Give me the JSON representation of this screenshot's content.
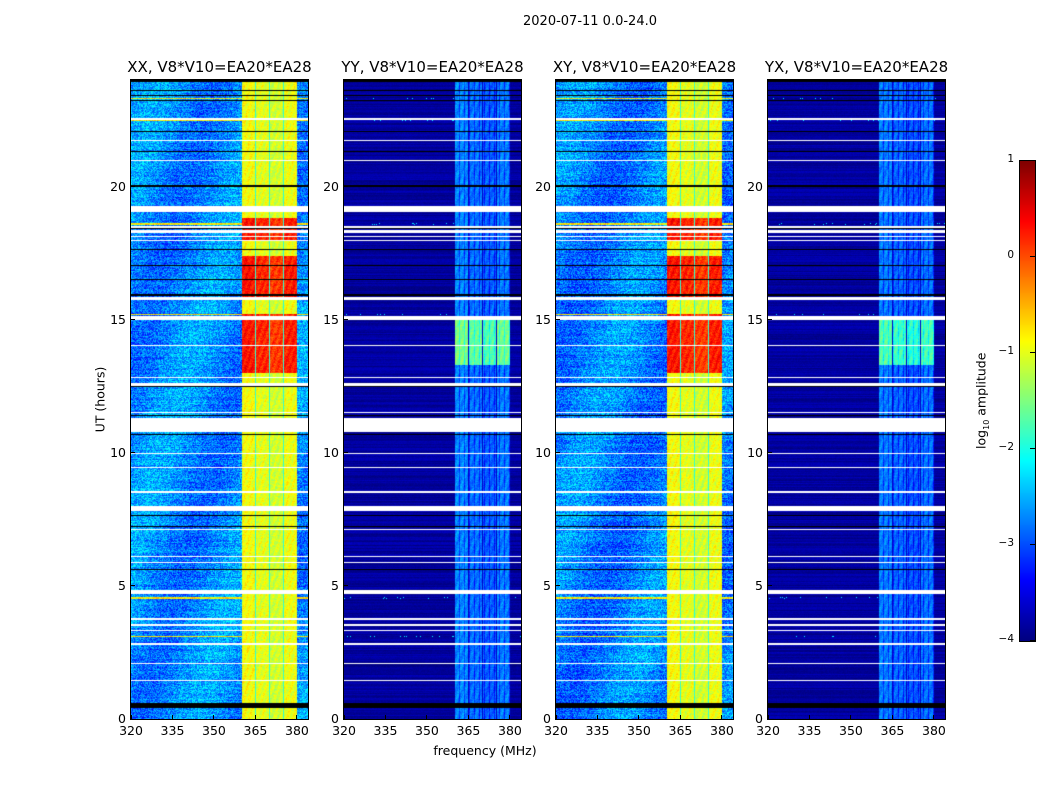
{
  "chart_data": {
    "type": "heatmap",
    "title": "2020-07-11 0.0-24.0",
    "xlabel": "frequency (MHz)",
    "ylabel": "UT (hours)",
    "xlim": [
      320,
      384
    ],
    "ylim": [
      0,
      24
    ],
    "xticks": [
      "320",
      "335",
      "350",
      "365",
      "380"
    ],
    "xtick_values": [
      320,
      335,
      350,
      365,
      380
    ],
    "yticks": [
      "0",
      "5",
      "10",
      "15",
      "20"
    ],
    "ytick_values": [
      0,
      5,
      10,
      15,
      20
    ],
    "colormap": "jet",
    "colorbar": {
      "label_main": "log",
      "label_sub": "10",
      "label_rest": " amplitude",
      "range": [
        -4,
        1
      ],
      "ticks": [
        "−4",
        "−3",
        "−2",
        "−1",
        "0",
        "1"
      ],
      "tick_values": [
        -4,
        -3,
        -2,
        -1,
        0,
        1
      ]
    },
    "subbands_mhz": [
      [
        360.3,
        364.8
      ],
      [
        365.3,
        369.8
      ],
      [
        370.3,
        374.9
      ],
      [
        375.4,
        379.9
      ]
    ],
    "panels": [
      {
        "title": "XX, V8*V10=EA20*EA28",
        "background_log_amp": -2.7,
        "band_log_amp": -1.0,
        "peak_log_amp": 0.2,
        "peak_hours": [
          [
            13.0,
            15.2
          ],
          [
            15.8,
            17.4
          ],
          [
            18.0,
            18.8
          ]
        ]
      },
      {
        "title": "YY, V8*V10=EA20*EA28",
        "background_log_amp": -3.85,
        "band_log_amp": -2.8,
        "peak_log_amp": -1.6,
        "peak_hours": [
          [
            13.3,
            15.0
          ]
        ]
      },
      {
        "title": "XY, V8*V10=EA20*EA28",
        "background_log_amp": -2.75,
        "band_log_amp": -1.0,
        "peak_log_amp": 0.2,
        "peak_hours": [
          [
            13.0,
            15.2
          ],
          [
            15.8,
            17.4
          ],
          [
            18.0,
            18.8
          ]
        ]
      },
      {
        "title": "YX, V8*V10=EA20*EA28",
        "background_log_amp": -3.85,
        "band_log_amp": -2.85,
        "peak_log_amp": -1.8,
        "peak_hours": [
          [
            13.3,
            15.0
          ]
        ]
      }
    ],
    "flagged_hours_white": [
      [
        19.05,
        19.28
      ],
      [
        10.78,
        11.3
      ],
      [
        7.8,
        8.0
      ],
      [
        4.7,
        4.86
      ],
      [
        2.78,
        2.84
      ],
      [
        2.05,
        2.1
      ],
      [
        1.42,
        1.48
      ],
      [
        3.72,
        3.78
      ],
      [
        3.5,
        3.55
      ],
      [
        3.3,
        3.35
      ],
      [
        9.42,
        9.48
      ],
      [
        14.0,
        14.06
      ],
      [
        12.8,
        12.86
      ],
      [
        12.52,
        12.62
      ],
      [
        11.48,
        11.54
      ],
      [
        15.0,
        15.12
      ],
      [
        15.72,
        15.84
      ],
      [
        17.95,
        18.0
      ],
      [
        18.1,
        18.15
      ],
      [
        18.25,
        18.35
      ],
      [
        18.45,
        18.5
      ],
      [
        22.5,
        22.56
      ],
      [
        21.7,
        21.76
      ],
      [
        20.95,
        21.0
      ],
      [
        8.5,
        8.55
      ],
      [
        9.95,
        10.0
      ],
      [
        6.1,
        6.14
      ],
      [
        5.85,
        5.9
      ],
      [
        7.1,
        7.15
      ]
    ],
    "flagged_hours_black": [
      [
        0.42,
        0.6
      ],
      [
        19.98,
        20.05
      ],
      [
        5.58,
        5.64
      ],
      [
        23.2,
        23.24
      ],
      [
        23.4,
        23.43
      ],
      [
        23.6,
        23.63
      ],
      [
        23.8,
        23.83
      ],
      [
        23.92,
        24.0
      ],
      [
        18.4,
        18.44
      ],
      [
        17.62,
        17.66
      ],
      [
        17.0,
        17.04
      ],
      [
        16.5,
        16.54
      ],
      [
        15.9,
        15.95
      ],
      [
        12.48,
        12.52
      ],
      [
        11.38,
        11.42
      ],
      [
        10.68,
        10.72
      ],
      [
        7.64,
        7.68
      ],
      [
        7.2,
        7.24
      ],
      [
        22.05,
        22.1
      ],
      [
        21.3,
        21.34
      ]
    ],
    "rfi_lines_hours": [
      23.3,
      22.5,
      18.6,
      15.2,
      4.55,
      3.1
    ]
  }
}
